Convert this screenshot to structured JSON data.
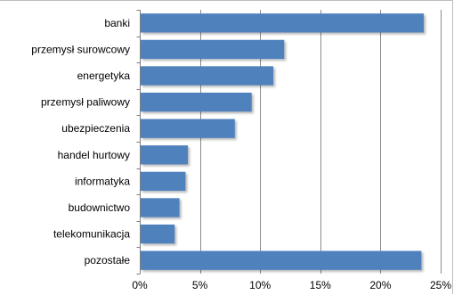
{
  "chart_data": {
    "type": "bar",
    "orientation": "horizontal",
    "title": "",
    "xlabel": "",
    "ylabel": "",
    "categories": [
      "banki",
      "przemysł surowcowy",
      "energetyka",
      "przemysł paliwowy",
      "ubezpieczenia",
      "handel hurtowy",
      "informatyka",
      "budownictwo",
      "telekomunikacja",
      "pozostałe"
    ],
    "values": [
      23.6,
      12.0,
      11.1,
      9.3,
      7.9,
      4.0,
      3.8,
      3.3,
      2.9,
      23.4
    ],
    "xlim": [
      0,
      25
    ],
    "xticks": [
      0,
      5,
      10,
      15,
      20,
      25
    ],
    "xtick_labels": [
      "0%",
      "5%",
      "10%",
      "15%",
      "20%",
      "25%"
    ],
    "grid": "vertical",
    "legend": "none",
    "bar_color": "#4f81bd",
    "grid_color": "#8c8c8c"
  }
}
